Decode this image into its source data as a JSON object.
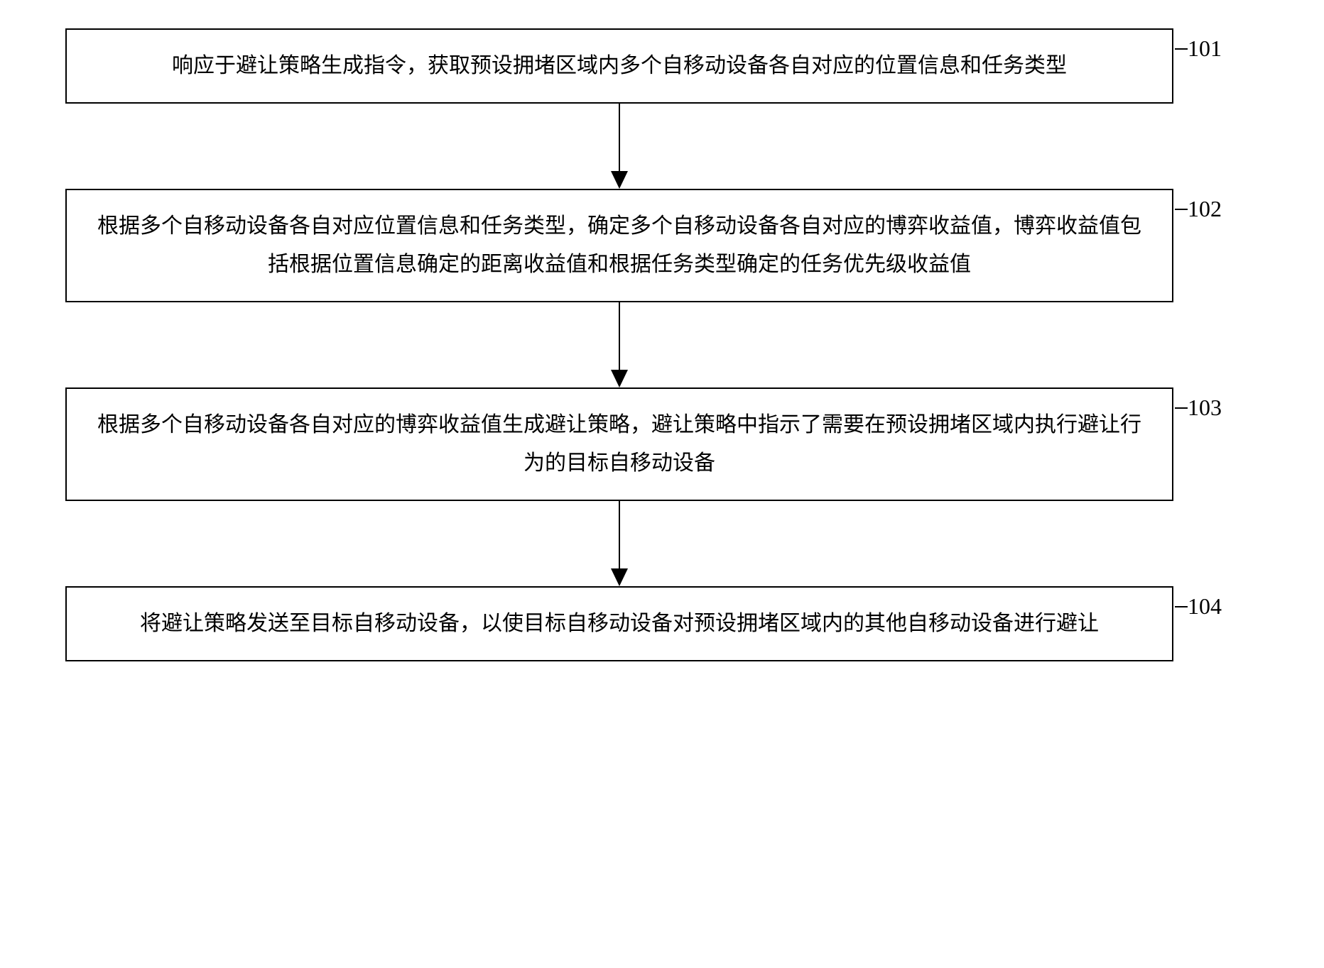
{
  "flowchart": {
    "type": "flowchart",
    "background_color": "#ffffff",
    "border_color": "#000000",
    "text_color": "#000000",
    "font_family": "SimSun",
    "box_font_size": 30,
    "label_font_size": 32,
    "border_width": 2,
    "arrow_color": "#000000",
    "steps": [
      {
        "id": "101",
        "text": "响应于避让策略生成指令，获取预设拥堵区域内多个自移动设备各自对应的位置信息和任务类型"
      },
      {
        "id": "102",
        "text": "根据多个自移动设备各自对应位置信息和任务类型，确定多个自移动设备各自对应的博弈收益值，博弈收益值包括根据位置信息确定的距离收益值和根据任务类型确定的任务优先级收益值"
      },
      {
        "id": "103",
        "text": "根据多个自移动设备各自对应的博弈收益值生成避让策略，避让策略中指示了需要在预设拥堵区域内执行避让行为的目标自移动设备"
      },
      {
        "id": "104",
        "text": "将避让策略发送至目标自移动设备，以使目标自移动设备对预设拥堵区域内的其他自移动设备进行避让"
      }
    ]
  }
}
